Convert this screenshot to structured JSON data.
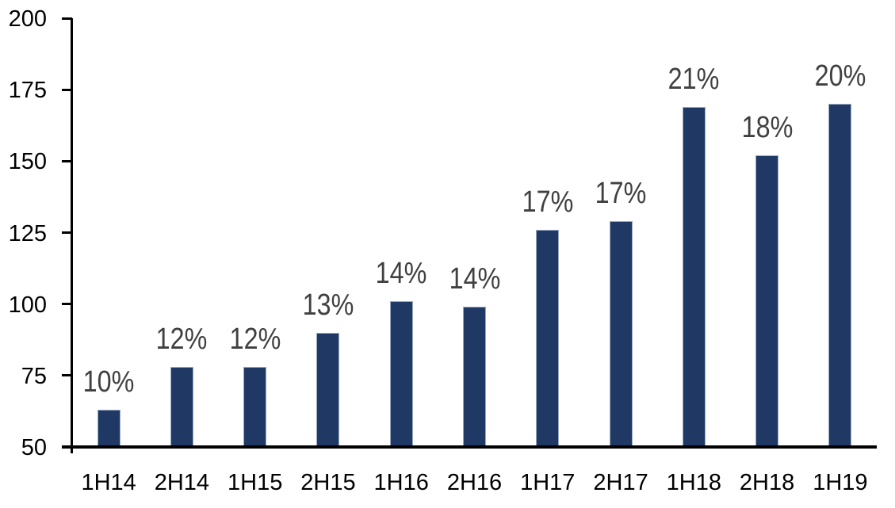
{
  "chart_data": {
    "type": "bar",
    "title": "",
    "xlabel": "",
    "ylabel": "",
    "categories": [
      "1H14",
      "2H14",
      "1H15",
      "2H15",
      "1H16",
      "2H16",
      "1H17",
      "2H17",
      "1H18",
      "2H18",
      "1H19"
    ],
    "values": [
      63,
      78,
      78,
      90,
      101,
      99,
      126,
      129,
      169,
      152,
      170
    ],
    "bar_labels": [
      "10%",
      "12%",
      "12%",
      "13%",
      "14%",
      "14%",
      "17%",
      "17%",
      "21%",
      "18%",
      "20%"
    ],
    "ylim": [
      50,
      200
    ],
    "ytick_step": 25,
    "yticks": [
      200,
      175,
      150,
      125,
      100,
      75,
      50
    ],
    "grid": false,
    "legend": "none",
    "colors": {
      "bar_fill": "#1f3864",
      "bar_edge": "#9aaac2",
      "bar_label_text": "#404040",
      "axis_text": "#000000",
      "axis_line": "#000000",
      "background": "#ffffff"
    }
  }
}
